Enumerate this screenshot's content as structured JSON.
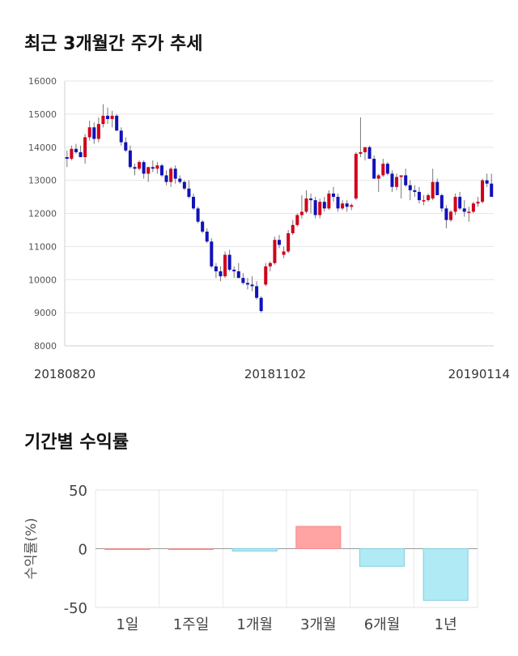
{
  "titles": {
    "price_chart": "최근 3개월간 주가 추세",
    "returns_chart": "기간별 수익률"
  },
  "chart_data": [
    {
      "type": "candlestick",
      "title": "최근 3개월간 주가 추세",
      "xlabel": "",
      "ylabel": "",
      "ylim": [
        8000,
        16000
      ],
      "yticks": [
        "16000",
        "15000",
        "14000",
        "13000",
        "12000",
        "11000",
        "10000",
        "9000",
        "8000"
      ],
      "xticks": [
        "20180820",
        "20181102",
        "20190114"
      ],
      "grid": true,
      "up_color": "#d0021b",
      "down_color": "#1111bb",
      "ohlc": [
        [
          13700,
          13900,
          13400,
          13650
        ],
        [
          13650,
          14050,
          13600,
          13950
        ],
        [
          13950,
          14100,
          13800,
          13850
        ],
        [
          13850,
          14050,
          13700,
          13700
        ],
        [
          13700,
          14400,
          13500,
          14300
        ],
        [
          14300,
          14800,
          14200,
          14600
        ],
        [
          14600,
          14750,
          14100,
          14250
        ],
        [
          14250,
          14900,
          14150,
          14700
        ],
        [
          14700,
          15300,
          14600,
          14950
        ],
        [
          14950,
          15200,
          14700,
          14850
        ],
        [
          14850,
          15100,
          14600,
          14950
        ],
        [
          14950,
          15000,
          14500,
          14500
        ],
        [
          14500,
          14600,
          14050,
          14150
        ],
        [
          14150,
          14300,
          13850,
          13900
        ],
        [
          13900,
          14050,
          13350,
          13400
        ],
        [
          13400,
          13500,
          13150,
          13350
        ],
        [
          13350,
          13600,
          13300,
          13550
        ],
        [
          13550,
          13600,
          13050,
          13200
        ],
        [
          13200,
          13400,
          12950,
          13400
        ],
        [
          13400,
          13600,
          13250,
          13350
        ],
        [
          13350,
          13550,
          13200,
          13450
        ],
        [
          13450,
          13500,
          13100,
          13150
        ],
        [
          13150,
          13300,
          12850,
          12950
        ],
        [
          12950,
          13400,
          12800,
          13350
        ],
        [
          13350,
          13450,
          12900,
          13050
        ],
        [
          13050,
          13150,
          12900,
          12950
        ],
        [
          12950,
          13000,
          12700,
          12750
        ],
        [
          12750,
          13000,
          12450,
          12500
        ],
        [
          12500,
          12600,
          12100,
          12150
        ],
        [
          12150,
          12200,
          11700,
          11750
        ],
        [
          11750,
          11800,
          11400,
          11450
        ],
        [
          11450,
          11550,
          11100,
          11150
        ],
        [
          11150,
          11250,
          10350,
          10400
        ],
        [
          10400,
          10500,
          10050,
          10250
        ],
        [
          10250,
          10400,
          9950,
          10100
        ],
        [
          10100,
          10850,
          10050,
          10750
        ],
        [
          10750,
          10900,
          10250,
          10300
        ],
        [
          10300,
          10400,
          10050,
          10250
        ],
        [
          10250,
          10500,
          10050,
          10050
        ],
        [
          10050,
          10200,
          9850,
          9900
        ],
        [
          9900,
          10050,
          9700,
          9850
        ],
        [
          9850,
          10100,
          9650,
          9800
        ],
        [
          9800,
          9950,
          9400,
          9450
        ],
        [
          9450,
          9500,
          9000,
          9050
        ],
        [
          9850,
          10500,
          9800,
          10400
        ],
        [
          10400,
          10550,
          10250,
          10500
        ],
        [
          10500,
          11300,
          10450,
          11200
        ],
        [
          11200,
          11350,
          10950,
          11050
        ],
        [
          10750,
          11000,
          10650,
          10850
        ],
        [
          10850,
          11500,
          10800,
          11400
        ],
        [
          11400,
          11800,
          11350,
          11650
        ],
        [
          11650,
          12000,
          11600,
          11950
        ],
        [
          11950,
          12550,
          11850,
          12050
        ],
        [
          12050,
          12700,
          12000,
          12450
        ],
        [
          12450,
          12600,
          12000,
          12400
        ],
        [
          12400,
          12500,
          11850,
          11950
        ],
        [
          11950,
          12450,
          11850,
          12350
        ],
        [
          12350,
          12500,
          12050,
          12150
        ],
        [
          12150,
          12700,
          12100,
          12600
        ],
        [
          12600,
          12800,
          12350,
          12500
        ],
        [
          12500,
          12600,
          12050,
          12150
        ],
        [
          12150,
          12400,
          12100,
          12300
        ],
        [
          12300,
          12400,
          12050,
          12200
        ],
        [
          12200,
          12300,
          12100,
          12250
        ],
        [
          12450,
          13850,
          12400,
          13800
        ],
        [
          13800,
          14900,
          13700,
          13850
        ],
        [
          13850,
          14000,
          13600,
          14000
        ],
        [
          14000,
          14050,
          13650,
          13650
        ],
        [
          13650,
          13750,
          13050,
          13050
        ],
        [
          13050,
          13200,
          12650,
          13150
        ],
        [
          13150,
          13650,
          13100,
          13500
        ],
        [
          13500,
          13550,
          13150,
          13200
        ],
        [
          13200,
          13300,
          12650,
          12800
        ],
        [
          12800,
          13200,
          12700,
          13100
        ],
        [
          13100,
          13150,
          12450,
          13150
        ],
        [
          13150,
          13350,
          12800,
          12850
        ],
        [
          12850,
          13000,
          12400,
          12700
        ],
        [
          12700,
          12850,
          12500,
          12650
        ],
        [
          12650,
          12800,
          12300,
          12400
        ],
        [
          12400,
          12550,
          12250,
          12400
        ],
        [
          12400,
          12600,
          12350,
          12550
        ],
        [
          12450,
          13350,
          12400,
          12950
        ],
        [
          12950,
          13050,
          12550,
          12550
        ],
        [
          12550,
          12600,
          12050,
          12150
        ],
        [
          12150,
          12250,
          11550,
          11800
        ],
        [
          11800,
          12100,
          11750,
          12050
        ],
        [
          12050,
          12600,
          11950,
          12500
        ],
        [
          12500,
          12650,
          12100,
          12150
        ],
        [
          12150,
          12400,
          11900,
          12050
        ],
        [
          12050,
          12200,
          11750,
          12050
        ],
        [
          12050,
          12350,
          12000,
          12300
        ],
        [
          12300,
          12500,
          12200,
          12350
        ],
        [
          12350,
          13050,
          12300,
          13000
        ],
        [
          13000,
          13200,
          12800,
          12900
        ],
        [
          12900,
          13200,
          12500,
          12500
        ]
      ]
    },
    {
      "type": "bar",
      "title": "기간별 수익률",
      "xlabel": "",
      "ylabel": "수익률(%)",
      "ylim": [
        -50,
        50
      ],
      "yticks": [
        "50",
        "0",
        "-50"
      ],
      "categories": [
        "1일",
        "1주일",
        "1개월",
        "3개월",
        "6개월",
        "1년"
      ],
      "values": [
        0,
        0,
        -2,
        19,
        -15,
        -44
      ],
      "positive_color": "#ffa3a3",
      "positive_border": "#f08c8c",
      "negative_color": "#b0eaf5",
      "negative_border": "#80cfe0",
      "grid": true
    }
  ]
}
